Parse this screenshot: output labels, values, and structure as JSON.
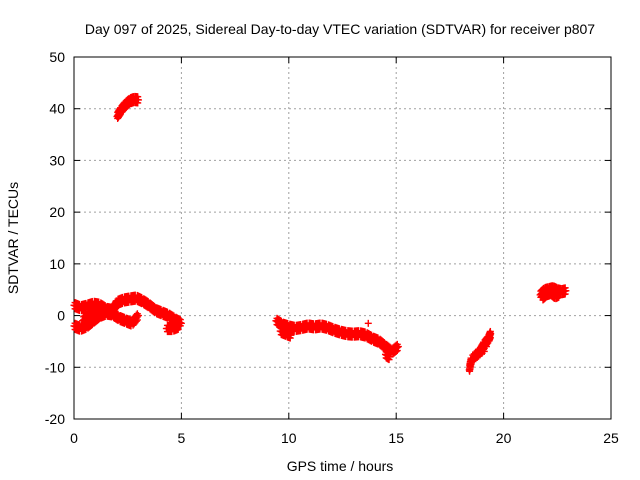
{
  "chart_data": {
    "type": "scatter",
    "title": "Day 097 of 2025, Sidereal Day-to-day VTEC variation (SDTVAR) for receiver p807",
    "xlabel": "GPS time / hours",
    "ylabel": "SDTVAR / TECUs",
    "xlim": [
      0,
      25
    ],
    "ylim": [
      -20,
      50
    ],
    "xticks": [
      0,
      5,
      10,
      15,
      20,
      25
    ],
    "yticks": [
      -20,
      -10,
      0,
      10,
      20,
      30,
      40,
      50
    ],
    "grid": true,
    "marker": "plus",
    "series": [
      {
        "name": "SDTVAR",
        "color": "#ff0000",
        "segments": [
          {
            "x": [
              2.0,
              2.2,
              2.4,
              2.6,
              2.8,
              3.0
            ],
            "y": [
              38.5,
              39.8,
              40.8,
              41.5,
              41.8,
              41.7
            ]
          },
          {
            "x": [
              0.0,
              0.3,
              0.6,
              0.9,
              1.2,
              1.5,
              1.8,
              2.0,
              2.3,
              2.6,
              2.9,
              3.2,
              3.5,
              3.8,
              4.1,
              4.4,
              4.7,
              5.0
            ],
            "y": [
              2.0,
              1.5,
              1.8,
              2.2,
              2.0,
              1.2,
              1.0,
              2.5,
              3.0,
              3.2,
              3.4,
              2.8,
              2.0,
              1.0,
              0.5,
              0.0,
              -0.8,
              -1.5
            ]
          },
          {
            "x": [
              0.0,
              0.3,
              0.6,
              0.9,
              1.2,
              1.5,
              1.8,
              2.1,
              2.4,
              2.7,
              3.0
            ],
            "y": [
              -2.0,
              -2.5,
              -2.0,
              -1.0,
              0.0,
              0.5,
              0.3,
              -0.5,
              -1.0,
              -1.5,
              0.0
            ]
          },
          {
            "x": [
              0.4,
              0.7,
              1.0,
              1.3
            ],
            "y": [
              -1.0,
              0.0,
              1.0,
              0.5
            ]
          },
          {
            "x": [
              4.3,
              4.6,
              4.9
            ],
            "y": [
              -2.5,
              -2.5,
              -2.0
            ]
          },
          {
            "x": [
              9.4,
              9.7,
              10.0,
              10.3,
              10.6,
              10.9,
              11.2,
              11.5,
              11.8,
              12.1,
              12.4,
              12.7,
              13.0,
              13.3,
              13.6,
              13.9,
              14.2,
              14.5,
              14.8,
              15.1
            ],
            "y": [
              -1.0,
              -1.8,
              -2.2,
              -2.5,
              -2.3,
              -2.0,
              -2.2,
              -2.0,
              -2.3,
              -2.8,
              -3.2,
              -3.5,
              -3.6,
              -3.5,
              -3.8,
              -4.5,
              -5.0,
              -6.0,
              -7.0,
              -6.0
            ]
          },
          {
            "x": [
              9.6,
              9.9,
              10.1
            ],
            "y": [
              -3.0,
              -3.5,
              -3.8
            ]
          },
          {
            "x": [
              13.7
            ],
            "y": [
              -1.5
            ]
          },
          {
            "x": [
              14.5,
              14.7
            ],
            "y": [
              -7.5,
              -8.0
            ]
          },
          {
            "x": [
              18.4,
              18.5,
              18.9,
              19.1,
              19.3,
              19.4
            ],
            "y": [
              -10.5,
              -8.5,
              -7.0,
              -5.5,
              -4.5,
              -3.5
            ]
          },
          {
            "x": [
              18.6,
              19.2
            ],
            "y": [
              -8.0,
              -6.0
            ]
          },
          {
            "x": [
              21.7,
              21.9,
              22.1,
              22.3,
              22.5,
              22.7,
              22.9
            ],
            "y": [
              4.0,
              4.8,
              5.0,
              5.2,
              4.8,
              4.6,
              4.8
            ]
          },
          {
            "x": [
              21.8,
              22.0,
              22.2,
              22.4,
              22.6
            ],
            "y": [
              3.5,
              4.2,
              4.5,
              3.8,
              4.2
            ]
          }
        ]
      }
    ]
  }
}
